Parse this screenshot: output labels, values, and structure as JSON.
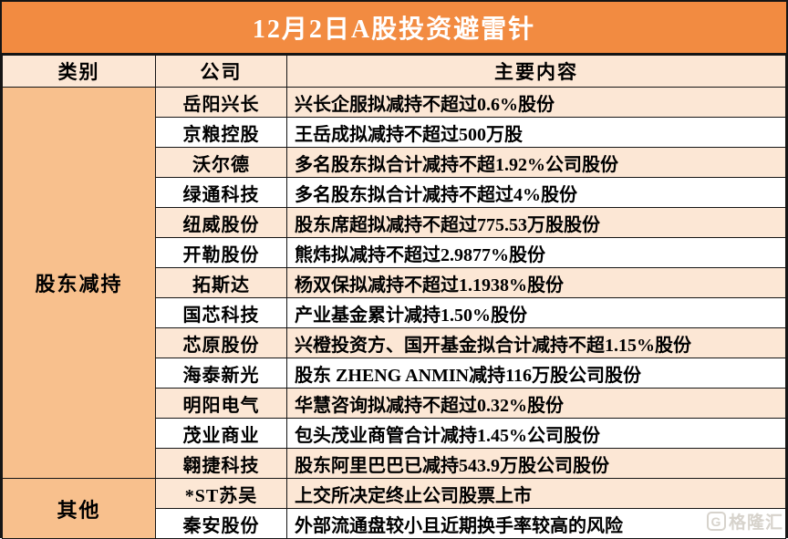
{
  "title": "12月2日A股投资避雷针",
  "columns": {
    "category": "类别",
    "company": "公司",
    "content": "主要内容"
  },
  "sections": [
    {
      "category": "股东减持",
      "rows": [
        {
          "company": "岳阳兴长",
          "content": "兴长企服拟减持不超过0.6%股份"
        },
        {
          "company": "京粮控股",
          "content": "王岳成拟减持不超过500万股"
        },
        {
          "company": "沃尔德",
          "content": "多名股东拟合计减持不超1.92%公司股份"
        },
        {
          "company": "绿通科技",
          "content": "多名股东拟合计减持不超过4%股份"
        },
        {
          "company": "纽威股份",
          "content": "股东席超拟减持不超过775.53万股股份"
        },
        {
          "company": "开勒股份",
          "content": "熊炜拟减持不超过2.9877%股份"
        },
        {
          "company": "拓斯达",
          "content": "杨双保拟减持不超过1.1938%股份"
        },
        {
          "company": "国芯科技",
          "content": "产业基金累计减持1.50%股份"
        },
        {
          "company": "芯原股份",
          "content": "兴橙投资方、国开基金拟合计减持不超1.15%股份"
        },
        {
          "company": "海泰新光",
          "content": "股东 ZHENG ANMIN减持116万股公司股份"
        },
        {
          "company": "明阳电气",
          "content": "华慧咨询拟减持不超过0.32%股份"
        },
        {
          "company": "茂业商业",
          "content": "包头茂业商管合计减持1.45%公司股份"
        },
        {
          "company": "翱捷科技",
          "content": "股东阿里巴巴已减持543.9万股公司股份"
        }
      ]
    },
    {
      "category": "其他",
      "rows": [
        {
          "company": "*ST苏吴",
          "content": "上交所决定终止公司股票上市"
        },
        {
          "company": "秦安股份",
          "content": "外部流通盘较小且近期换手率较高的风险"
        }
      ]
    }
  ],
  "watermark": {
    "logo": "G",
    "text": "格隆汇"
  },
  "colors": {
    "title_bg": "#F28B41",
    "title_text": "#FFFFFF",
    "header_bg": "#FCE7D5",
    "category_bg": "#F8C08D",
    "row_alt_bg": "#FCE7D5",
    "row_bg": "#FFFFFF",
    "border": "#151515"
  }
}
